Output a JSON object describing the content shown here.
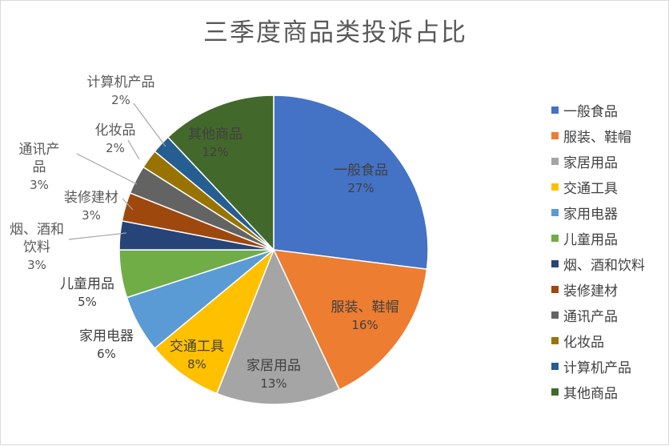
{
  "chart_data": {
    "type": "pie",
    "title": "三季度商品类投诉占比",
    "categories": [
      "一般食品",
      "服装、鞋帽",
      "家居用品",
      "交通工具",
      "家用电器",
      "儿童用品",
      "烟、酒和饮料",
      "装修建材",
      "通讯产品",
      "化妆品",
      "计算机产品",
      "其他商品"
    ],
    "values": [
      27,
      16,
      13,
      8,
      6,
      5,
      3,
      3,
      3,
      2,
      2,
      12
    ],
    "value_labels": [
      "27%",
      "16%",
      "13%",
      "8%",
      "6%",
      "5%",
      "3%",
      "3%",
      "3%",
      "2%",
      "2%",
      "12%"
    ],
    "slice_labels": [
      "一般食品",
      "服装、鞋帽",
      "家居用品",
      "交通工具",
      "家用电器",
      "儿童用品",
      "烟、酒和\n饮料",
      "装修建材",
      "通讯产\n品",
      "化妆品",
      "计算机产品",
      "其他商品"
    ],
    "colors": [
      "#4472c4",
      "#ed7d31",
      "#a5a5a5",
      "#ffc000",
      "#5b9bd5",
      "#70ad47",
      "#264478",
      "#9e480e",
      "#636363",
      "#997300",
      "#255e91",
      "#43682b"
    ],
    "legend": {
      "position": "right"
    }
  }
}
